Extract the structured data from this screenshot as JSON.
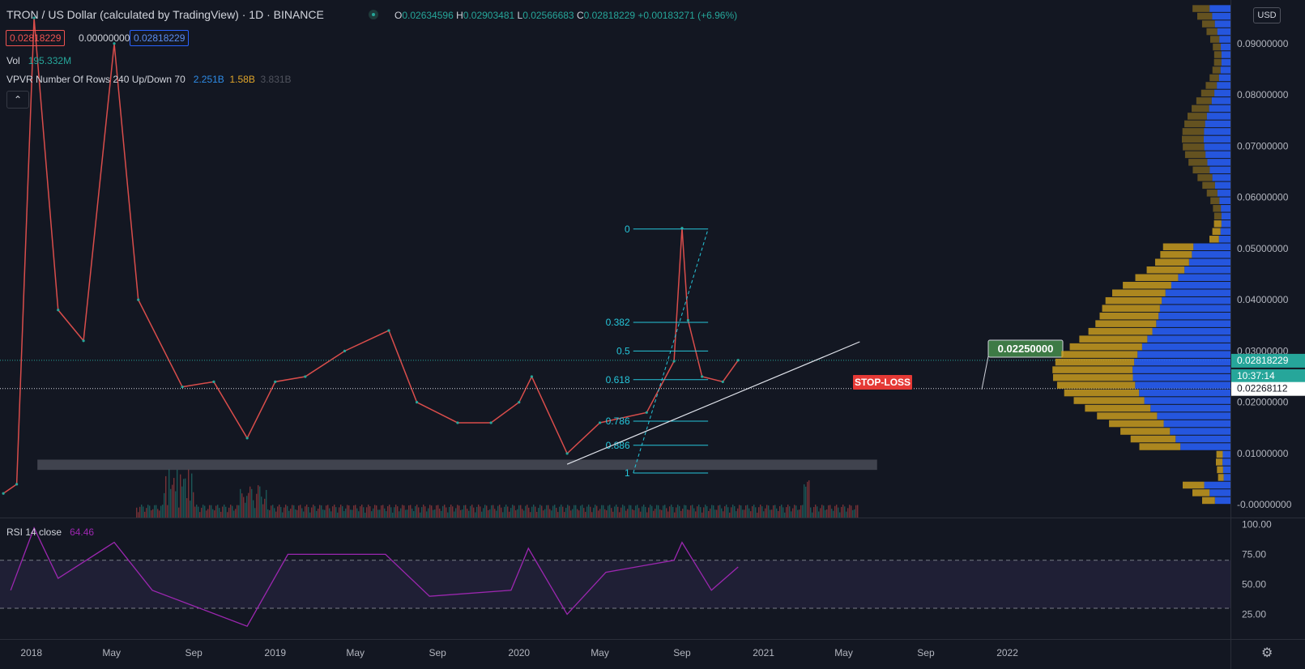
{
  "header": {
    "title": "TRON / US Dollar (calculated by TradingView) · 1D · BINANCE",
    "ohlc": {
      "o_label": "O",
      "o": "0.02634596",
      "h_label": "H",
      "h": "0.02903481",
      "l_label": "L",
      "l": "0.02566683",
      "c_label": "C",
      "c": "0.02818229",
      "change": "+0.00183271 (+6.96%)"
    },
    "price_box_red": "0.02818229",
    "price_box_zero": "0.00000000",
    "price_box_blue": "0.02818229"
  },
  "indicators": {
    "vol_label": "Vol",
    "vol_value": "195.332M",
    "vpvr_label": "VPVR Number Of Rows 240 Up/Down 70",
    "vpvr_up": "2.251B",
    "vpvr_down": "1.58B",
    "vpvr_total": "3.831B",
    "rsi_label": "RSI 14 close",
    "rsi_value": "64.46"
  },
  "currency": "USD",
  "price_axis": {
    "ticks": [
      "0.09000000",
      "0.08000000",
      "0.07000000",
      "0.06000000",
      "0.05000000",
      "0.04000000",
      "0.03000000",
      "0.02000000",
      "0.01000000",
      "-0.00000000"
    ],
    "current_price": "0.02818229",
    "countdown": "10:37:14",
    "crosshair_price": "0.02268112"
  },
  "rsi_axis": {
    "ticks": [
      "100.00",
      "75.00",
      "50.00",
      "25.00"
    ]
  },
  "time_axis": {
    "labels": [
      "2018",
      "May",
      "Sep",
      "2019",
      "May",
      "Sep",
      "2020",
      "May",
      "Sep",
      "2021",
      "May",
      "Sep",
      "2022"
    ]
  },
  "annotations": {
    "target_price": "0.02250000",
    "stop_loss": "STOP-LOSS",
    "fib_levels": [
      {
        "label": "0",
        "price": 0.0538
      },
      {
        "label": "0.382",
        "price": 0.0356
      },
      {
        "label": "0.5",
        "price": 0.03
      },
      {
        "label": "0.618",
        "price": 0.0244
      },
      {
        "label": "0.786",
        "price": 0.0163
      },
      {
        "label": "0.886",
        "price": 0.0116
      },
      {
        "label": "1",
        "price": 0.0062
      }
    ]
  },
  "colors": {
    "background": "#131722",
    "up": "#26a69a",
    "down": "#ef5350",
    "fib": "#26c6da",
    "vp_up": "#2962ff",
    "vp_down": "#c89b1e",
    "rsi": "#9c27b0"
  },
  "chart_data": {
    "type": "line",
    "title": "TRON / US Dollar (calculated by TradingView) · 1D · BINANCE",
    "x": [
      "2017-11-20",
      "2017-12-10",
      "2018-01-05",
      "2018-02-10",
      "2018-03-20",
      "2018-05-05",
      "2018-06-10",
      "2018-08-15",
      "2018-10-01",
      "2018-11-20",
      "2019-01-01",
      "2019-02-15",
      "2019-04-15",
      "2019-06-20",
      "2019-08-01",
      "2019-10-01",
      "2019-11-20",
      "2020-01-01",
      "2020-01-20",
      "2020-03-13",
      "2020-05-01",
      "2020-07-10",
      "2020-08-20",
      "2020-09-01",
      "2020-09-10",
      "2020-10-01",
      "2020-11-01",
      "2020-11-24"
    ],
    "series": [
      {
        "values": [
          0.0022,
          0.004,
          0.095,
          0.038,
          0.032,
          0.09,
          0.04,
          0.023,
          0.024,
          0.013,
          0.024,
          0.025,
          0.03,
          0.034,
          0.02,
          0.016,
          0.016,
          0.02,
          0.025,
          0.01,
          0.016,
          0.018,
          0.028,
          0.054,
          0.036,
          0.025,
          0.024,
          0.0282
        ]
      }
    ],
    "volume_profile_axis": [
      -0.0,
      0.095
    ],
    "ylim": [
      -0.0025,
      0.0985
    ],
    "rsi": {
      "period": 14,
      "bands": [
        30,
        70
      ],
      "ylim": [
        5,
        105
      ],
      "x": [
        "2017-12-01",
        "2018-01-05",
        "2018-02-10",
        "2018-05-05",
        "2018-07-01",
        "2018-11-20",
        "2019-01-20",
        "2019-06-15",
        "2019-08-20",
        "2019-12-20",
        "2020-01-15",
        "2020-03-13",
        "2020-05-10",
        "2020-08-20",
        "2020-09-01",
        "2020-10-15",
        "2020-11-24"
      ],
      "values": [
        45,
        97,
        55,
        85,
        45,
        15,
        75,
        75,
        40,
        45,
        80,
        25,
        60,
        70,
        85,
        45,
        64.46
      ]
    },
    "time_axis_range": [
      "2017-11-15",
      "2022-12-01"
    ]
  }
}
